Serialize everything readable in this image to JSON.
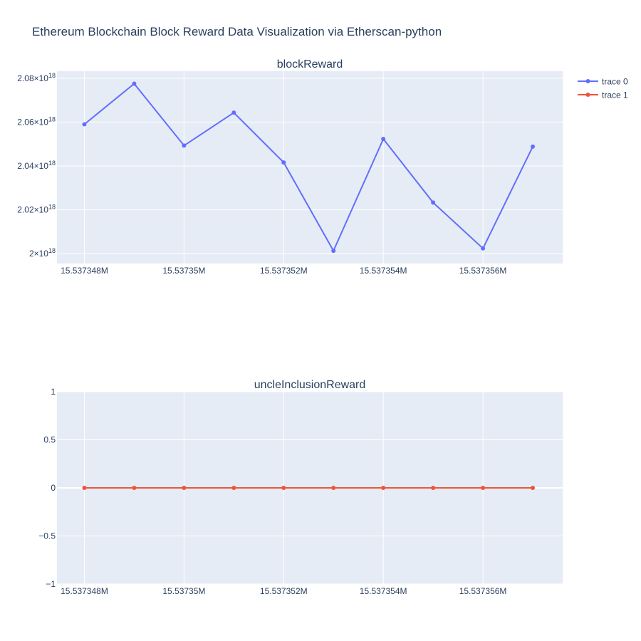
{
  "title": "Ethereum Blockchain Block Reward Data Visualization via Etherscan-python",
  "legend": {
    "placement": "top-right",
    "items": [
      {
        "label": "trace 0",
        "color": "#636efa"
      },
      {
        "label": "trace 1",
        "color": "#ef553b"
      }
    ]
  },
  "colors": {
    "plot_bg": "#e5ecf6",
    "grid": "#ffffff",
    "text": "#2a3f5f"
  },
  "chart_data": [
    {
      "type": "line",
      "title": "blockReward",
      "series": [
        {
          "name": "trace 0",
          "x": [
            15537348,
            15537349,
            15537350,
            15537351,
            15537352,
            15537353,
            15537354,
            15537355,
            15537356,
            15537357
          ],
          "y": [
            2.059e+18,
            2.0775e+18,
            2.0493e+18,
            2.0643e+18,
            2.0416e+18,
            2.0013e+18,
            2.0523e+18,
            2.0233e+18,
            2.0024e+18,
            2.0488e+18
          ]
        }
      ],
      "xlim": [
        15537347.45,
        15537357.6
      ],
      "ylim": [
        1.9955e+18,
        2.0832e+18
      ],
      "xticks": [
        15537348,
        15537350,
        15537352,
        15537354,
        15537356
      ],
      "xtick_labels": [
        "15.537348M",
        "15.53735M",
        "15.537352M",
        "15.537354M",
        "15.537356M"
      ],
      "yticks": [
        2e+18,
        2.02e+18,
        2.04e+18,
        2.06e+18,
        2.08e+18
      ],
      "ytick_labels": [
        {
          "base": "2×10",
          "exp": "18"
        },
        {
          "base": "2.02×10",
          "exp": "18"
        },
        {
          "base": "2.04×10",
          "exp": "18"
        },
        {
          "base": "2.06×10",
          "exp": "18"
        },
        {
          "base": "2.08×10",
          "exp": "18"
        }
      ],
      "grid": true
    },
    {
      "type": "line",
      "title": "uncleInclusionReward",
      "series": [
        {
          "name": "trace 1",
          "x": [
            15537348,
            15537349,
            15537350,
            15537351,
            15537352,
            15537353,
            15537354,
            15537355,
            15537356,
            15537357
          ],
          "y": [
            0,
            0,
            0,
            0,
            0,
            0,
            0,
            0,
            0,
            0
          ]
        }
      ],
      "xlim": [
        15537347.45,
        15537357.6
      ],
      "ylim": [
        -1,
        1
      ],
      "xticks": [
        15537348,
        15537350,
        15537352,
        15537354,
        15537356
      ],
      "xtick_labels": [
        "15.537348M",
        "15.53735M",
        "15.537352M",
        "15.537354M",
        "15.537356M"
      ],
      "yticks": [
        -1,
        -0.5,
        0,
        0.5,
        1
      ],
      "ytick_labels": [
        {
          "base": "−1"
        },
        {
          "base": "−0.5"
        },
        {
          "base": "0"
        },
        {
          "base": "0.5"
        },
        {
          "base": "1"
        }
      ],
      "grid": true
    }
  ]
}
